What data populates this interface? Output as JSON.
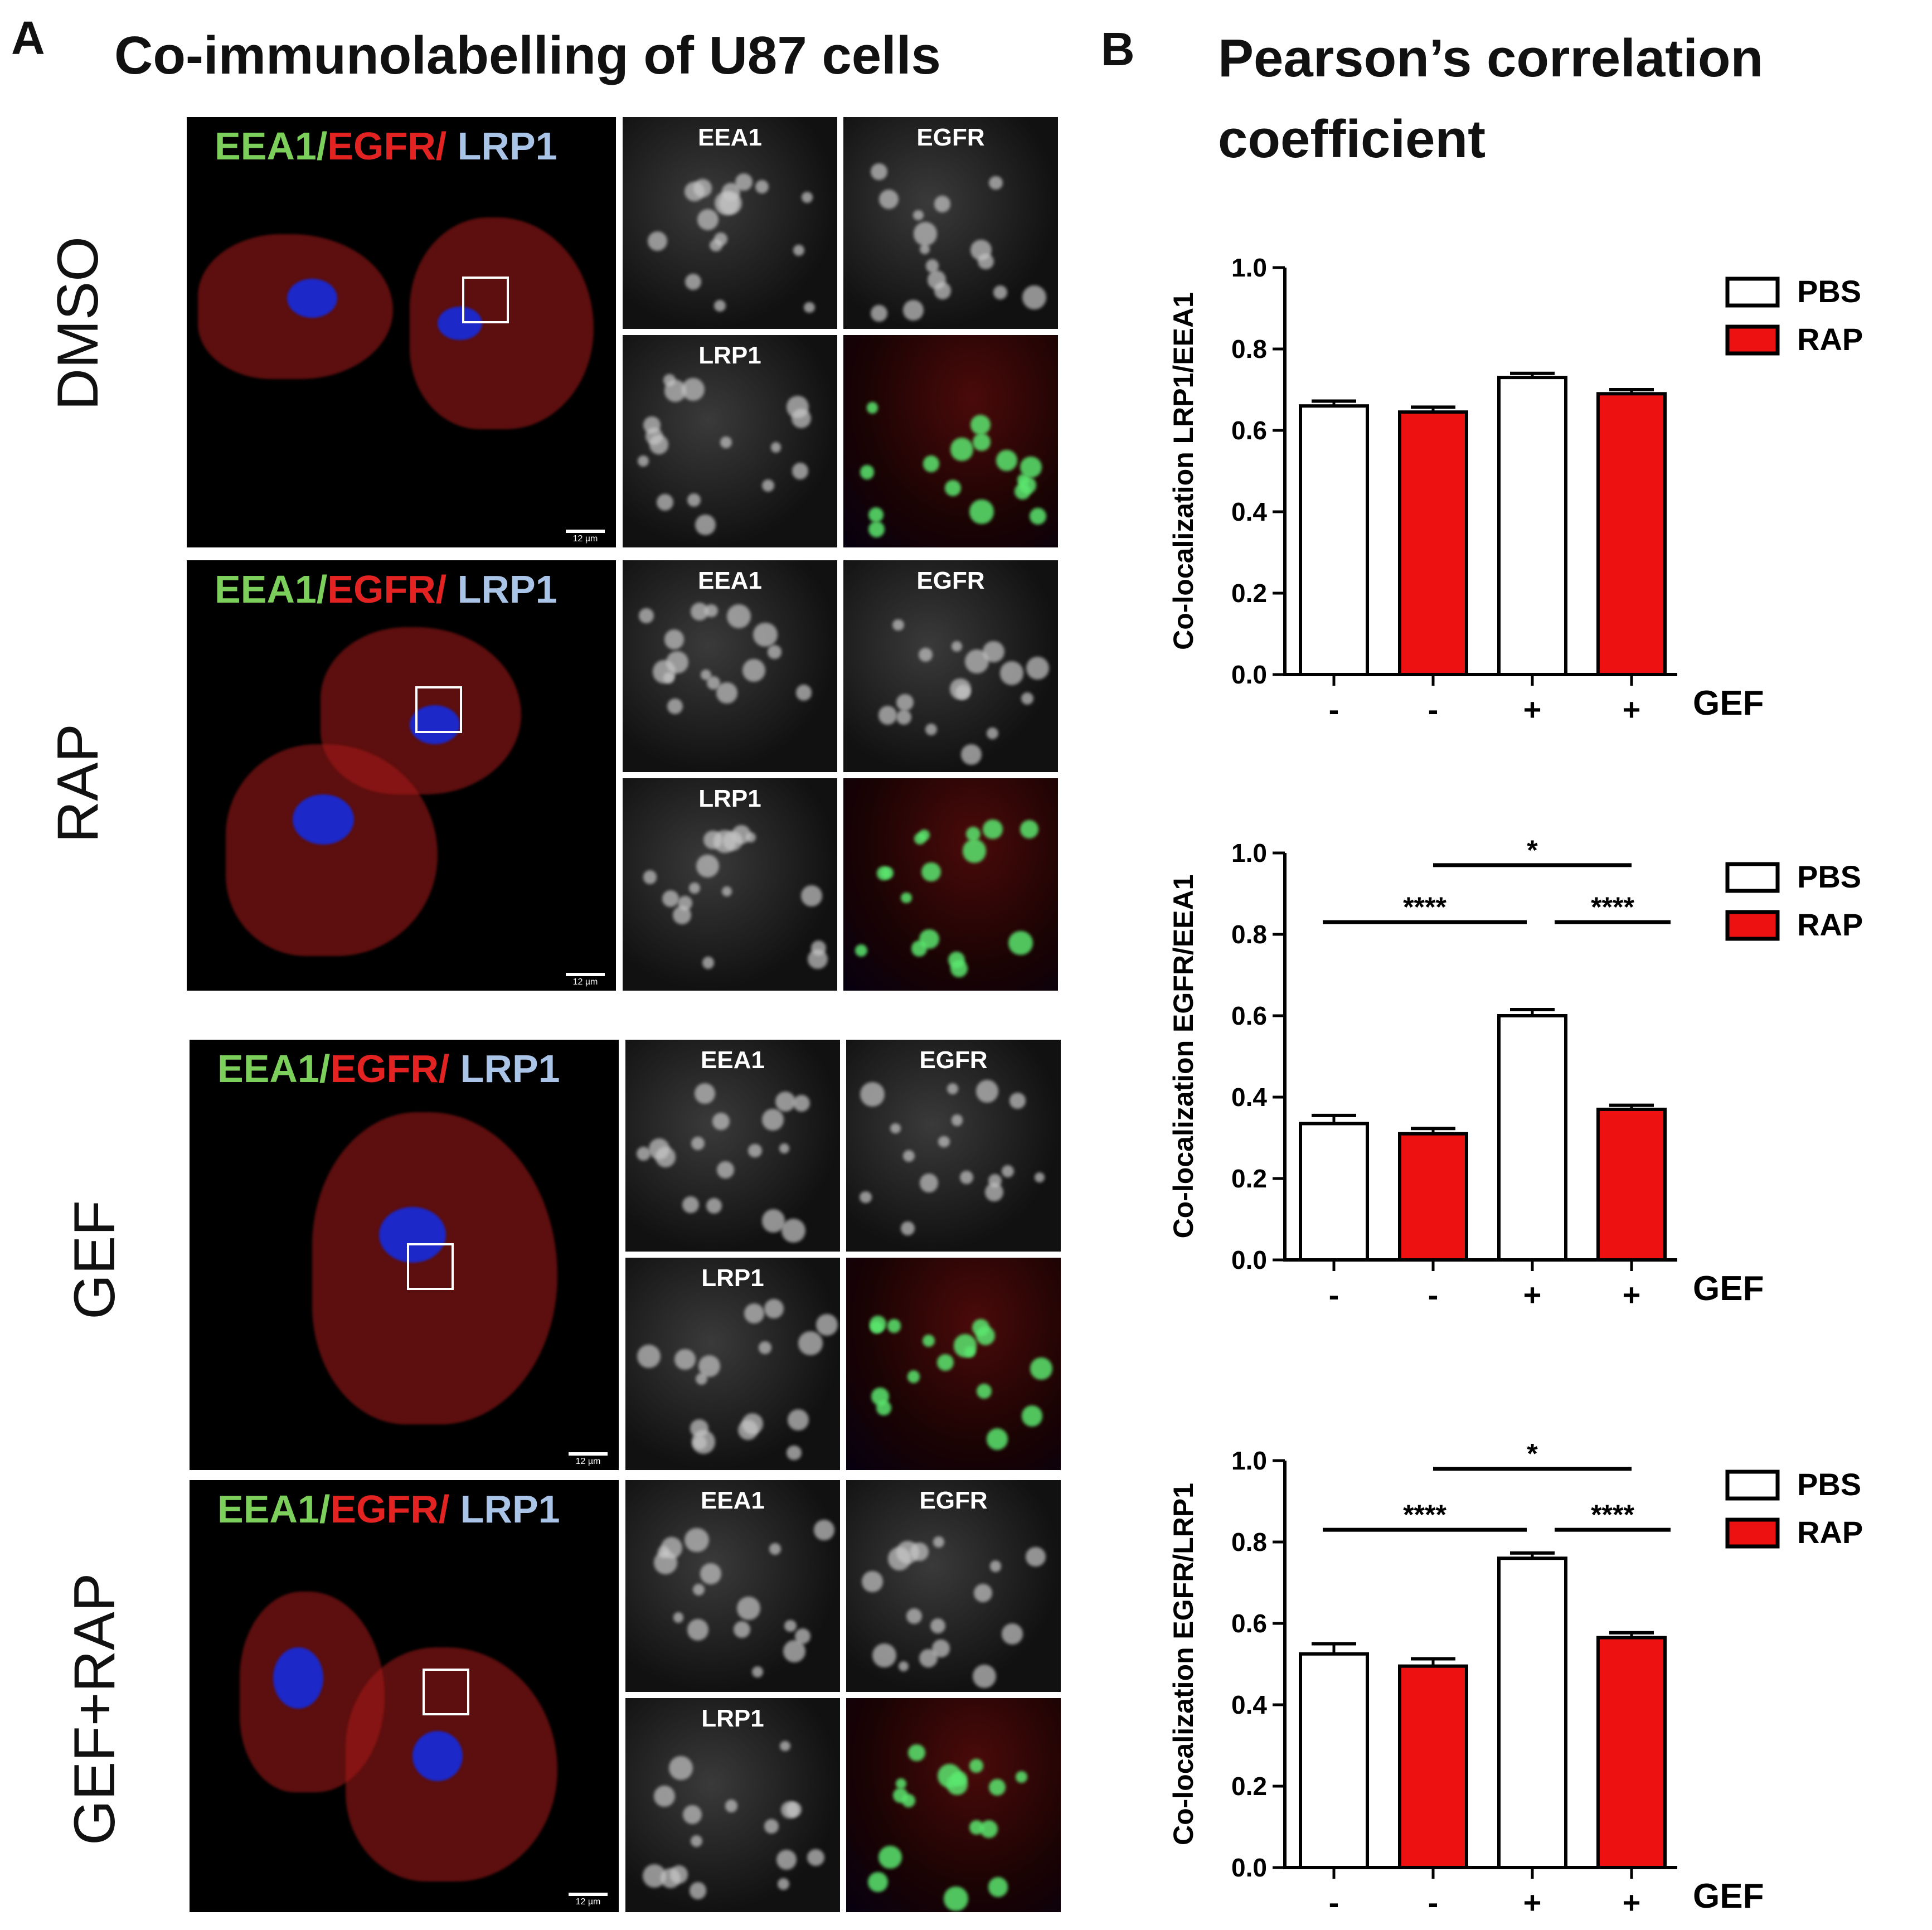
{
  "panel_a": {
    "letter": "A",
    "title": "Co-immunolabelling of U87 cells",
    "stain_labels": {
      "eea1": "EEA1/",
      "egfr": "EGFR/",
      "lrp1": " LRP1"
    },
    "channel_labels": {
      "eea1": "EEA1",
      "egfr": "EGFR",
      "lrp1": "LRP1"
    },
    "scale_bar": "12 µm",
    "conditions": [
      "DMSO",
      "RAP",
      "GEF",
      "GEF+RAP"
    ]
  },
  "panel_b": {
    "letter": "B",
    "title_line1": "Pearson’s correlation",
    "title_line2": "coefficient"
  },
  "colors": {
    "pbs": "#ffffff",
    "rap": "#ee1111",
    "stroke": "#000000"
  },
  "chart_data": [
    {
      "type": "bar",
      "ylabel": "Co-localization LRP1/EEA1",
      "ylim": [
        0,
        1.0
      ],
      "yticks": [
        "0.0",
        "0.2",
        "0.4",
        "0.6",
        "0.8",
        "1.0"
      ],
      "categories": [
        "-",
        "-",
        "+",
        "+"
      ],
      "xlabel": "GEF",
      "legend": [
        "PBS",
        "RAP"
      ],
      "legend_position": "top-right",
      "values": [
        0.66,
        0.645,
        0.73,
        0.69
      ],
      "errors": [
        0.012,
        0.012,
        0.01,
        0.01
      ],
      "groups": [
        "PBS",
        "RAP",
        "PBS",
        "RAP"
      ],
      "significance": []
    },
    {
      "type": "bar",
      "ylabel": "Co-localization EGFR/EEA1",
      "ylim": [
        0,
        1.0
      ],
      "yticks": [
        "0.0",
        "0.2",
        "0.4",
        "0.6",
        "0.8",
        "1.0"
      ],
      "categories": [
        "-",
        "-",
        "+",
        "+"
      ],
      "xlabel": "GEF",
      "legend": [
        "PBS",
        "RAP"
      ],
      "legend_position": "top-right",
      "values": [
        0.335,
        0.31,
        0.6,
        0.37
      ],
      "errors": [
        0.02,
        0.013,
        0.015,
        0.01
      ],
      "groups": [
        "PBS",
        "RAP",
        "PBS",
        "RAP"
      ],
      "significance": [
        {
          "label": "*",
          "from": 1,
          "to": 3,
          "y": 0.97
        },
        {
          "label": "****",
          "from": 0,
          "to": 2,
          "y": 0.83
        },
        {
          "label": "****",
          "from": 2,
          "to": 3,
          "y": 0.83
        }
      ]
    },
    {
      "type": "bar",
      "ylabel": "Co-localization EGFR/LRP1",
      "ylim": [
        0,
        1.0
      ],
      "yticks": [
        "0.0",
        "0.2",
        "0.4",
        "0.6",
        "0.8",
        "1.0"
      ],
      "categories": [
        "-",
        "-",
        "+",
        "+"
      ],
      "xlabel": "GEF",
      "legend": [
        "PBS",
        "RAP"
      ],
      "legend_position": "top-right",
      "values": [
        0.525,
        0.495,
        0.76,
        0.565
      ],
      "errors": [
        0.025,
        0.018,
        0.013,
        0.012
      ],
      "groups": [
        "PBS",
        "RAP",
        "PBS",
        "RAP"
      ],
      "significance": [
        {
          "label": "*",
          "from": 1,
          "to": 3,
          "y": 0.98
        },
        {
          "label": "****",
          "from": 0,
          "to": 2,
          "y": 0.83
        },
        {
          "label": "****",
          "from": 2,
          "to": 3,
          "y": 0.83
        }
      ]
    }
  ]
}
